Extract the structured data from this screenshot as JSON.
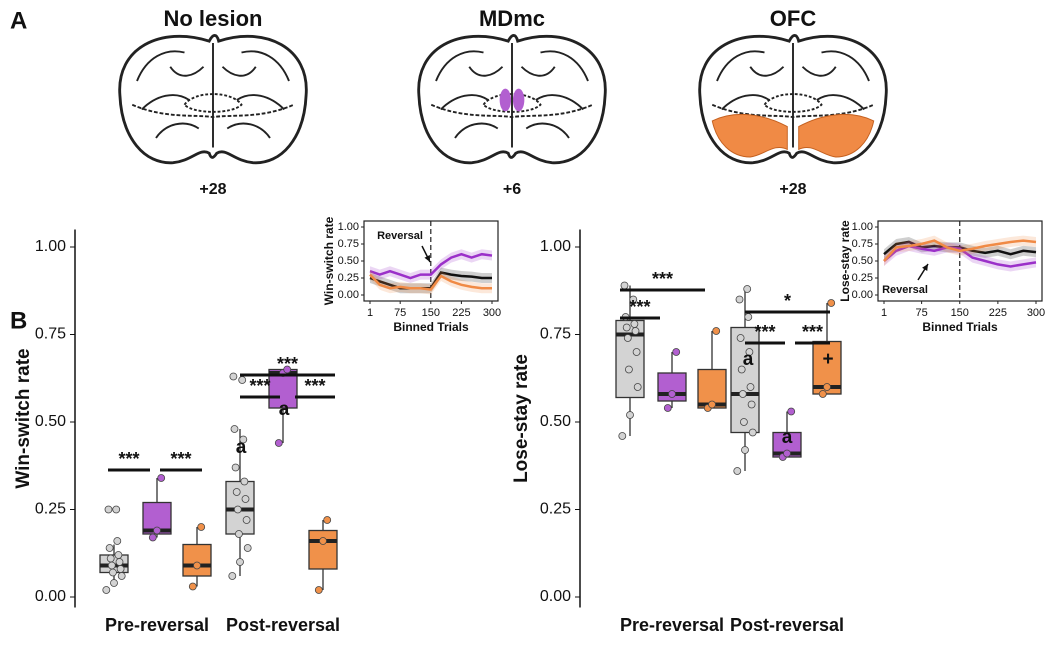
{
  "panel_labels": [
    "A",
    "B"
  ],
  "sections": [
    {
      "title": "No lesion",
      "coord": "+28"
    },
    {
      "title": "MDmc",
      "coord": "+6"
    },
    {
      "title": "OFC",
      "coord": "+28"
    }
  ],
  "chart_data": [
    {
      "type": "box",
      "ylabel": "Win-switch rate",
      "categories": [
        "Pre-reversal",
        "Post-reversal"
      ],
      "ylim": [
        -0.03,
        1.05
      ],
      "yticks": [
        {
          "value": 0,
          "label": "0.00"
        },
        {
          "value": 0.25,
          "label": "0.25"
        },
        {
          "value": 0.5,
          "label": "0.50"
        },
        {
          "value": 0.75,
          "label": "0.75"
        },
        {
          "value": 1,
          "label": "1.00"
        }
      ],
      "series": [
        {
          "color": "#d3d3d3",
          "boxes": [
            {
              "min": 0.03,
              "q1": 0.07,
              "median": 0.09,
              "q3": 0.12,
              "max": 0.15,
              "points": [
                0.02,
                0.04,
                0.06,
                0.07,
                0.08,
                0.09,
                0.1,
                0.11,
                0.12,
                0.14,
                0.16,
                0.25,
                0.25
              ]
            },
            {
              "min": 0.06,
              "q1": 0.18,
              "median": 0.25,
              "q3": 0.33,
              "max": 0.48,
              "points": [
                0.06,
                0.1,
                0.14,
                0.18,
                0.22,
                0.25,
                0.28,
                0.3,
                0.33,
                0.37,
                0.45,
                0.48,
                0.62,
                0.63
              ]
            }
          ]
        },
        {
          "color": "#b25fd0",
          "boxes": [
            {
              "min": 0.17,
              "q1": 0.18,
              "median": 0.19,
              "q3": 0.27,
              "max": 0.34,
              "points": [
                0.17,
                0.19,
                0.34
              ]
            },
            {
              "min": 0.44,
              "q1": 0.54,
              "median": 0.64,
              "q3": 0.65,
              "max": 0.65,
              "points": [
                0.44,
                0.64,
                0.65
              ]
            }
          ]
        },
        {
          "color": "#f0914a",
          "boxes": [
            {
              "min": 0.03,
              "q1": 0.06,
              "median": 0.09,
              "q3": 0.15,
              "max": 0.2,
              "points": [
                0.03,
                0.09,
                0.2
              ]
            },
            {
              "min": 0.02,
              "q1": 0.08,
              "median": 0.16,
              "q3": 0.19,
              "max": 0.22,
              "points": [
                0.02,
                0.16,
                0.22
              ]
            }
          ]
        }
      ],
      "annotations": [
        {
          "text": "***"
        },
        {
          "text": "***"
        },
        {
          "text": "***"
        },
        {
          "text": "***"
        },
        {
          "text": "***"
        },
        {
          "text": "a"
        },
        {
          "text": "a"
        }
      ]
    },
    {
      "type": "line",
      "xlabel": "Binned Trials",
      "ylabel": "Win-switch rate",
      "annotation": "Reversal",
      "vline": 150,
      "xlim": [
        1,
        300
      ],
      "ylim": [
        0,
        1
      ],
      "xticks": [
        1,
        75,
        150,
        225,
        300
      ],
      "yticks": [
        {
          "value": 0,
          "label": "0.00"
        },
        {
          "value": 0.25,
          "label": "0.25"
        },
        {
          "value": 0.5,
          "label": "0.50"
        },
        {
          "value": 0.75,
          "label": "0.75"
        },
        {
          "value": 1,
          "label": "1.00"
        }
      ],
      "x": [
        1,
        25,
        50,
        75,
        100,
        125,
        150,
        175,
        200,
        225,
        250,
        275,
        300
      ],
      "series": [
        {
          "color": "#111111",
          "values": [
            0.25,
            0.2,
            0.15,
            0.1,
            0.1,
            0.1,
            0.1,
            0.33,
            0.3,
            0.28,
            0.27,
            0.25,
            0.25
          ]
        },
        {
          "color": "#9b30c9",
          "values": [
            0.35,
            0.3,
            0.35,
            0.3,
            0.25,
            0.3,
            0.3,
            0.45,
            0.55,
            0.6,
            0.55,
            0.6,
            0.58
          ]
        },
        {
          "color": "#f08a45",
          "values": [
            0.3,
            0.15,
            0.1,
            0.12,
            0.1,
            0.1,
            0.08,
            0.28,
            0.2,
            0.15,
            0.12,
            0.1,
            0.1
          ]
        }
      ]
    },
    {
      "type": "box",
      "ylabel": "Lose-stay rate",
      "categories": [
        "Pre-reversal",
        "Post-reversal"
      ],
      "ylim": [
        -0.03,
        1.05
      ],
      "yticks": [
        {
          "value": 0,
          "label": "0.00"
        },
        {
          "value": 0.25,
          "label": "0.25"
        },
        {
          "value": 0.5,
          "label": "0.50"
        },
        {
          "value": 0.75,
          "label": "0.75"
        },
        {
          "value": 1,
          "label": "1.00"
        }
      ],
      "series": [
        {
          "color": "#d3d3d3",
          "boxes": [
            {
              "min": 0.46,
              "q1": 0.57,
              "median": 0.75,
              "q3": 0.79,
              "max": 0.89,
              "points": [
                0.46,
                0.52,
                0.6,
                0.65,
                0.7,
                0.74,
                0.76,
                0.77,
                0.78,
                0.8,
                0.85,
                0.89
              ]
            },
            {
              "min": 0.36,
              "q1": 0.47,
              "median": 0.58,
              "q3": 0.77,
              "max": 0.88,
              "points": [
                0.36,
                0.42,
                0.47,
                0.5,
                0.55,
                0.58,
                0.6,
                0.65,
                0.7,
                0.74,
                0.8,
                0.85,
                0.88
              ]
            }
          ]
        },
        {
          "color": "#b25fd0",
          "boxes": [
            {
              "min": 0.54,
              "q1": 0.56,
              "median": 0.58,
              "q3": 0.64,
              "max": 0.7,
              "points": [
                0.54,
                0.58,
                0.7
              ]
            },
            {
              "min": 0.4,
              "q1": 0.4,
              "median": 0.41,
              "q3": 0.47,
              "max": 0.53,
              "points": [
                0.4,
                0.41,
                0.53
              ]
            }
          ]
        },
        {
          "color": "#f0914a",
          "boxes": [
            {
              "min": 0.54,
              "q1": 0.54,
              "median": 0.55,
              "q3": 0.65,
              "max": 0.76,
              "points": [
                0.54,
                0.55,
                0.76
              ]
            },
            {
              "min": 0.58,
              "q1": 0.58,
              "median": 0.6,
              "q3": 0.73,
              "max": 0.84,
              "points": [
                0.58,
                0.6,
                0.84
              ]
            }
          ]
        }
      ],
      "annotations": [
        {
          "text": "***"
        },
        {
          "text": "***"
        },
        {
          "text": "*"
        },
        {
          "text": "***"
        },
        {
          "text": "***"
        },
        {
          "text": "a"
        },
        {
          "text": "a"
        },
        {
          "text": "+"
        }
      ]
    },
    {
      "type": "line",
      "xlabel": "Binned Trials",
      "ylabel": "Lose-stay rate",
      "annotation": "Reversal",
      "vline": 150,
      "xlim": [
        1,
        300
      ],
      "ylim": [
        0,
        1
      ],
      "xticks": [
        1,
        75,
        150,
        225,
        300
      ],
      "yticks": [
        {
          "value": 0,
          "label": "0.00"
        },
        {
          "value": 0.25,
          "label": "0.25"
        },
        {
          "value": 0.5,
          "label": "0.50"
        },
        {
          "value": 0.75,
          "label": "0.75"
        },
        {
          "value": 1,
          "label": "1.00"
        }
      ],
      "x": [
        1,
        25,
        50,
        75,
        100,
        125,
        150,
        175,
        200,
        225,
        250,
        275,
        300
      ],
      "series": [
        {
          "color": "#111111",
          "values": [
            0.6,
            0.75,
            0.78,
            0.7,
            0.72,
            0.7,
            0.7,
            0.65,
            0.62,
            0.65,
            0.6,
            0.65,
            0.63
          ]
        },
        {
          "color": "#9b30c9",
          "values": [
            0.5,
            0.65,
            0.72,
            0.68,
            0.65,
            0.7,
            0.68,
            0.55,
            0.5,
            0.45,
            0.42,
            0.45,
            0.48
          ]
        },
        {
          "color": "#f08a45",
          "values": [
            0.5,
            0.7,
            0.72,
            0.75,
            0.8,
            0.7,
            0.65,
            0.68,
            0.72,
            0.75,
            0.78,
            0.8,
            0.78
          ]
        }
      ]
    }
  ]
}
